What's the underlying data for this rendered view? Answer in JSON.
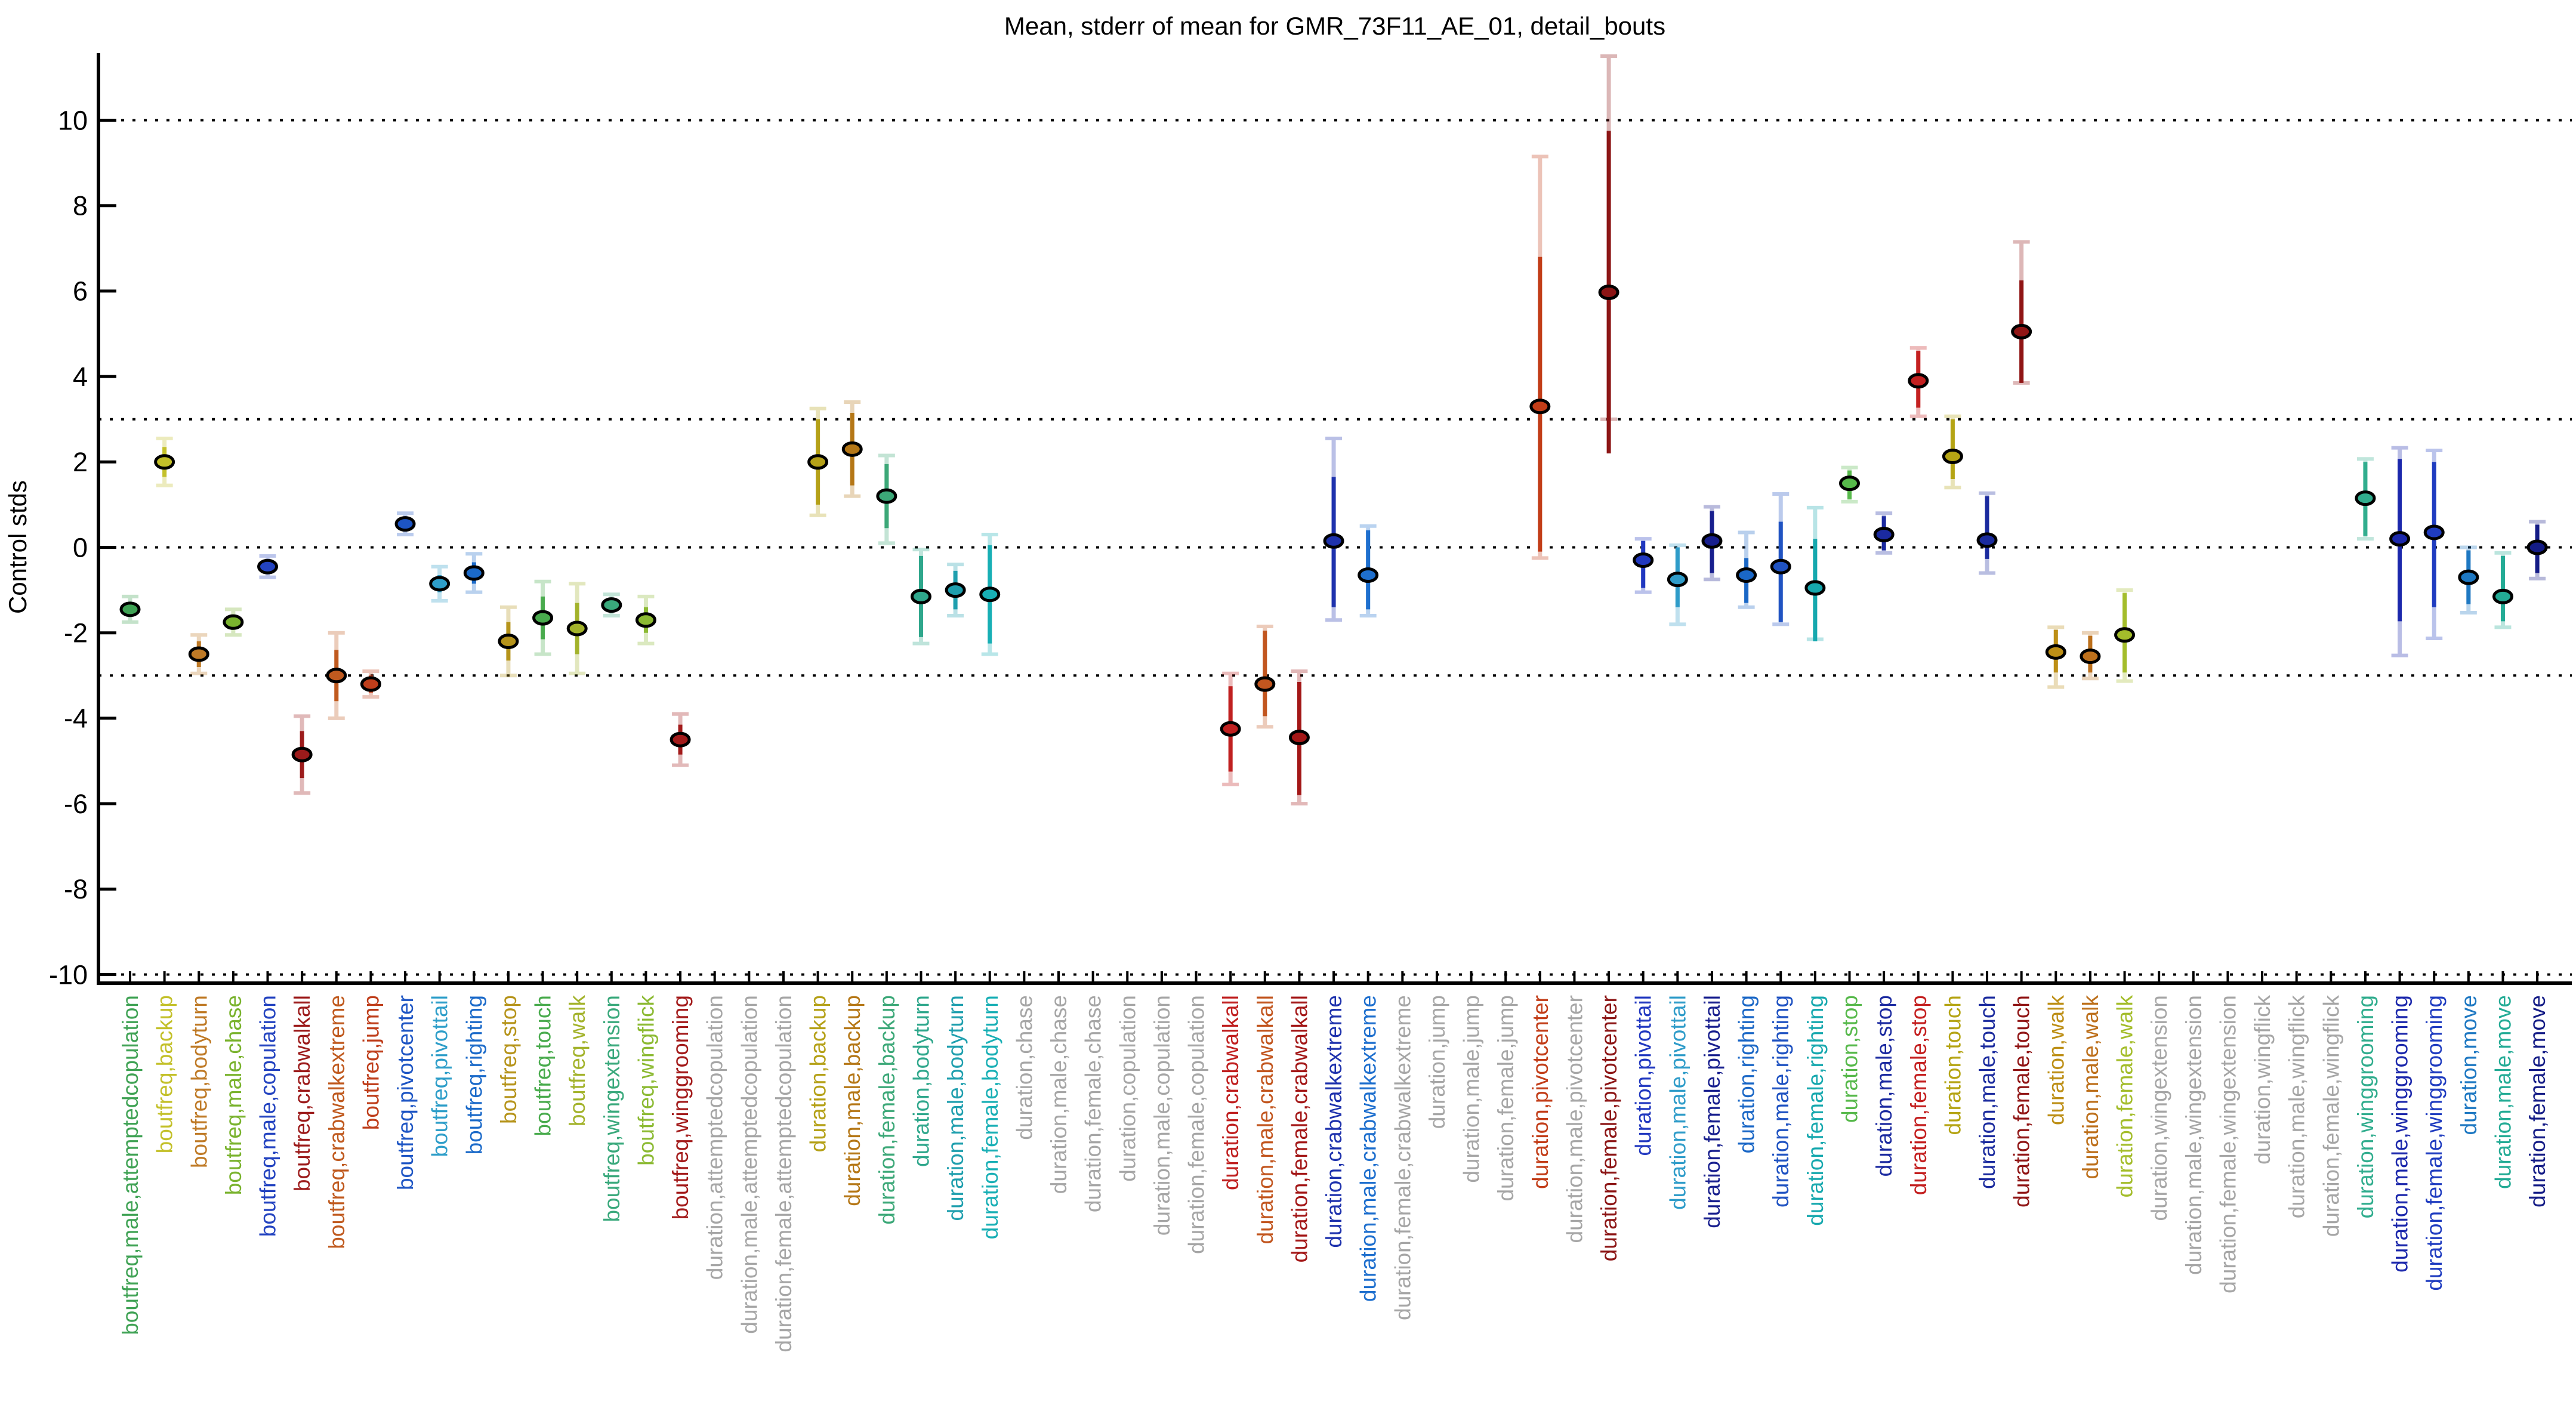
{
  "chart_data": {
    "type": "scatter",
    "title": "Mean, stderr of mean for GMR_73F11_AE_01, detail_bouts",
    "ylabel": "Control stds",
    "ylim": [
      -10.2,
      11.57
    ],
    "yticks": [
      -10,
      -8,
      -6,
      -4,
      -2,
      0,
      2,
      4,
      6,
      8,
      10
    ],
    "gridlines_y": [
      10,
      3,
      0,
      -3,
      -10
    ],
    "grid_on": true,
    "legend": "none",
    "no_data_color": "#a6a6a6",
    "points": [
      {
        "label": "boutfreq,male,attemptedcopulation",
        "color": "#3fa254",
        "mean": -1.45,
        "se": [
          -1.6,
          -1.3
        ],
        "sd": [
          -1.75,
          -1.15
        ]
      },
      {
        "label": "boutfreq,backup",
        "color": "#c3c029",
        "mean": 2.0,
        "se": [
          1.65,
          2.35
        ],
        "sd": [
          1.45,
          2.55
        ]
      },
      {
        "label": "boutfreq,bodyturn",
        "color": "#bf7a26",
        "mean": -2.5,
        "se": [
          -2.8,
          -2.2
        ],
        "sd": [
          -2.95,
          -2.05
        ]
      },
      {
        "label": "boutfreq,male,chase",
        "color": "#7ab32e",
        "mean": -1.75,
        "se": [
          -1.9,
          -1.6
        ],
        "sd": [
          -2.05,
          -1.45
        ]
      },
      {
        "label": "boutfreq,male,copulation",
        "color": "#2343c0",
        "mean": -0.45,
        "se": [
          -0.6,
          -0.3
        ],
        "sd": [
          -0.7,
          -0.2
        ]
      },
      {
        "label": "boutfreq,crabwalkall",
        "color": "#9c1b1b",
        "mean": -4.85,
        "se": [
          -5.4,
          -4.3
        ],
        "sd": [
          -5.75,
          -3.95
        ]
      },
      {
        "label": "boutfreq,crabwalkextreme",
        "color": "#c05a1f",
        "mean": -3.0,
        "se": [
          -3.6,
          -2.4
        ],
        "sd": [
          -4.0,
          -2.0
        ]
      },
      {
        "label": "boutfreq,jump",
        "color": "#bf3e1b",
        "mean": -3.2,
        "se": [
          -3.4,
          -3.0
        ],
        "sd": [
          -3.5,
          -2.9
        ]
      },
      {
        "label": "boutfreq,pivotcenter",
        "color": "#1d55c4",
        "mean": 0.55,
        "se": [
          0.4,
          0.7
        ],
        "sd": [
          0.3,
          0.8
        ]
      },
      {
        "label": "boutfreq,pivottail",
        "color": "#2e9ec9",
        "mean": -0.85,
        "se": [
          -1.05,
          -0.65
        ],
        "sd": [
          -1.25,
          -0.45
        ]
      },
      {
        "label": "boutfreq,righting",
        "color": "#1b6ac9",
        "mean": -0.6,
        "se": [
          -0.85,
          -0.35
        ],
        "sd": [
          -1.05,
          -0.15
        ]
      },
      {
        "label": "boutfreq,stop",
        "color": "#b6941b",
        "mean": -2.2,
        "se": [
          -2.65,
          -1.75
        ],
        "sd": [
          -3.0,
          -1.4
        ]
      },
      {
        "label": "boutfreq,touch",
        "color": "#49ab4d",
        "mean": -1.65,
        "se": [
          -2.15,
          -1.15
        ],
        "sd": [
          -2.5,
          -0.8
        ]
      },
      {
        "label": "boutfreq,walk",
        "color": "#a3b32b",
        "mean": -1.9,
        "se": [
          -2.5,
          -1.3
        ],
        "sd": [
          -2.95,
          -0.85
        ]
      },
      {
        "label": "boutfreq,wingextension",
        "color": "#3aa97c",
        "mean": -1.35,
        "se": [
          -1.5,
          -1.2
        ],
        "sd": [
          -1.6,
          -1.1
        ]
      },
      {
        "label": "boutfreq,wingflick",
        "color": "#8cba33",
        "mean": -1.7,
        "se": [
          -2.0,
          -1.4
        ],
        "sd": [
          -2.25,
          -1.15
        ]
      },
      {
        "label": "boutfreq,winggrooming",
        "color": "#a31b1b",
        "mean": -4.5,
        "se": [
          -4.85,
          -4.15
        ],
        "sd": [
          -5.1,
          -3.9
        ]
      },
      {
        "label": "duration,attemptedcopulation",
        "color": "#a6a6a6",
        "mean": null,
        "se": null,
        "sd": null
      },
      {
        "label": "duration,male,attemptedcopulation",
        "color": "#a6a6a6",
        "mean": null,
        "se": null,
        "sd": null
      },
      {
        "label": "duration,female,attemptedcopulation",
        "color": "#a6a6a6",
        "mean": null,
        "se": null,
        "sd": null
      },
      {
        "label": "duration,backup",
        "color": "#b5a118",
        "mean": 2.0,
        "se": [
          1.0,
          3.0
        ],
        "sd": [
          0.75,
          3.25
        ]
      },
      {
        "label": "duration,male,backup",
        "color": "#b57716",
        "mean": 2.3,
        "se": [
          1.45,
          3.15
        ],
        "sd": [
          1.2,
          3.4
        ]
      },
      {
        "label": "duration,female,backup",
        "color": "#3ca878",
        "mean": 1.2,
        "se": [
          0.45,
          1.95
        ],
        "sd": [
          0.1,
          2.15
        ]
      },
      {
        "label": "duration,bodyturn",
        "color": "#2fa78c",
        "mean": -1.15,
        "se": [
          -2.1,
          -0.2
        ],
        "sd": [
          -2.25,
          -0.05
        ]
      },
      {
        "label": "duration,male,bodyturn",
        "color": "#1f9fae",
        "mean": -1.0,
        "se": [
          -1.45,
          -0.55
        ],
        "sd": [
          -1.6,
          -0.4
        ]
      },
      {
        "label": "duration,female,bodyturn",
        "color": "#18afb5",
        "mean": -1.1,
        "se": [
          -2.25,
          0.05
        ],
        "sd": [
          -2.5,
          0.3
        ]
      },
      {
        "label": "duration,chase",
        "color": "#a6a6a6",
        "mean": null,
        "se": null,
        "sd": null
      },
      {
        "label": "duration,male,chase",
        "color": "#a6a6a6",
        "mean": null,
        "se": null,
        "sd": null
      },
      {
        "label": "duration,female,chase",
        "color": "#a6a6a6",
        "mean": null,
        "se": null,
        "sd": null
      },
      {
        "label": "duration,copulation",
        "color": "#a6a6a6",
        "mean": null,
        "se": null,
        "sd": null
      },
      {
        "label": "duration,male,copulation",
        "color": "#a6a6a6",
        "mean": null,
        "se": null,
        "sd": null
      },
      {
        "label": "duration,female,copulation",
        "color": "#a6a6a6",
        "mean": null,
        "se": null,
        "sd": null
      },
      {
        "label": "duration,crabwalkall",
        "color": "#c02020",
        "mean": -4.25,
        "se": [
          -5.25,
          -3.25
        ],
        "sd": [
          -5.55,
          -2.95
        ]
      },
      {
        "label": "duration,male,crabwalkall",
        "color": "#c2561f",
        "mean": -3.2,
        "se": [
          -3.95,
          -1.95
        ],
        "sd": [
          -4.2,
          -1.85
        ]
      },
      {
        "label": "duration,female,crabwalkall",
        "color": "#a31717",
        "mean": -4.45,
        "se": [
          -5.8,
          -3.15
        ],
        "sd": [
          -6.0,
          -2.9
        ]
      },
      {
        "label": "duration,crabwalkextreme",
        "color": "#1e32ad",
        "mean": 0.15,
        "se": [
          -1.4,
          1.65
        ],
        "sd": [
          -1.7,
          2.55
        ]
      },
      {
        "label": "duration,male,crabwalkextreme",
        "color": "#1e6fce",
        "mean": -0.65,
        "se": [
          -1.45,
          0.4
        ],
        "sd": [
          -1.6,
          0.5
        ]
      },
      {
        "label": "duration,female,crabwalkextreme",
        "color": "#a6a6a6",
        "mean": null,
        "se": null,
        "sd": null
      },
      {
        "label": "duration,jump",
        "color": "#a6a6a6",
        "mean": null,
        "se": null,
        "sd": null
      },
      {
        "label": "duration,male,jump",
        "color": "#a6a6a6",
        "mean": null,
        "se": null,
        "sd": null
      },
      {
        "label": "duration,female,jump",
        "color": "#a6a6a6",
        "mean": null,
        "se": null,
        "sd": null
      },
      {
        "label": "duration,pivotcenter",
        "color": "#c23d18",
        "mean": 3.3,
        "se": [
          -0.1,
          6.8
        ],
        "sd": [
          -0.25,
          9.15
        ]
      },
      {
        "label": "duration,male,pivotcenter",
        "color": "#a6a6a6",
        "mean": null,
        "se": null,
        "sd": null
      },
      {
        "label": "duration,female,pivotcenter",
        "color": "#8c1515",
        "mean": 5.97,
        "se": [
          2.2,
          9.75
        ],
        "sd": [
          3.0,
          11.5
        ]
      },
      {
        "label": "duration,pivottail",
        "color": "#2138c0",
        "mean": -0.3,
        "se": [
          -0.95,
          0.15
        ],
        "sd": [
          -1.05,
          0.2
        ]
      },
      {
        "label": "duration,male,pivottail",
        "color": "#2f9cc9",
        "mean": -0.75,
        "se": [
          -1.4,
          0.0
        ],
        "sd": [
          -1.8,
          0.05
        ]
      },
      {
        "label": "duration,female,pivottail",
        "color": "#181f8e",
        "mean": 0.15,
        "se": [
          -0.6,
          0.85
        ],
        "sd": [
          -0.75,
          0.95
        ]
      },
      {
        "label": "duration,righting",
        "color": "#1a67c6",
        "mean": -0.65,
        "se": [
          -1.3,
          -0.25
        ],
        "sd": [
          -1.4,
          0.35
        ]
      },
      {
        "label": "duration,male,righting",
        "color": "#2053c2",
        "mean": -0.45,
        "se": [
          -1.75,
          0.6
        ],
        "sd": [
          -1.8,
          1.25
        ]
      },
      {
        "label": "duration,female,righting",
        "color": "#16a8ae",
        "mean": -0.95,
        "se": [
          -2.2,
          0.2
        ],
        "sd": [
          -2.15,
          0.93
        ]
      },
      {
        "label": "duration,stop",
        "color": "#57b94b",
        "mean": 1.5,
        "se": [
          1.13,
          1.8
        ],
        "sd": [
          1.07,
          1.87
        ]
      },
      {
        "label": "duration,male,stop",
        "color": "#1b2aa0",
        "mean": 0.3,
        "se": [
          -0.07,
          0.73
        ],
        "sd": [
          -0.13,
          0.8
        ]
      },
      {
        "label": "duration,female,stop",
        "color": "#c42020",
        "mean": 3.9,
        "se": [
          3.27,
          4.6
        ],
        "sd": [
          3.07,
          4.67
        ]
      },
      {
        "label": "duration,touch",
        "color": "#b5a414",
        "mean": 2.13,
        "se": [
          1.6,
          3.0
        ],
        "sd": [
          1.4,
          3.07
        ]
      },
      {
        "label": "duration,male,touch",
        "color": "#1b2b9e",
        "mean": 0.17,
        "se": [
          -0.27,
          1.2
        ],
        "sd": [
          -0.6,
          1.27
        ]
      },
      {
        "label": "duration,female,touch",
        "color": "#901515",
        "mean": 5.05,
        "se": [
          3.85,
          6.25
        ],
        "sd": [
          3.85,
          7.15
        ]
      },
      {
        "label": "duration,walk",
        "color": "#bd8f16",
        "mean": -2.45,
        "se": [
          -2.93,
          -1.93
        ],
        "sd": [
          -3.27,
          -1.87
        ]
      },
      {
        "label": "duration,male,walk",
        "color": "#bd701c",
        "mean": -2.55,
        "se": [
          -2.93,
          -2.07
        ],
        "sd": [
          -3.07,
          -2.0
        ]
      },
      {
        "label": "duration,female,walk",
        "color": "#a4bd2b",
        "mean": -2.05,
        "se": [
          -2.93,
          -1.07
        ],
        "sd": [
          -3.13,
          -1.0
        ]
      },
      {
        "label": "duration,wingextension",
        "color": "#a6a6a6",
        "mean": null,
        "se": null,
        "sd": null
      },
      {
        "label": "duration,male,wingextension",
        "color": "#a6a6a6",
        "mean": null,
        "se": null,
        "sd": null
      },
      {
        "label": "duration,female,wingextension",
        "color": "#a6a6a6",
        "mean": null,
        "se": null,
        "sd": null
      },
      {
        "label": "duration,wingflick",
        "color": "#a6a6a6",
        "mean": null,
        "se": null,
        "sd": null
      },
      {
        "label": "duration,male,wingflick",
        "color": "#a6a6a6",
        "mean": null,
        "se": null,
        "sd": null
      },
      {
        "label": "duration,female,wingflick",
        "color": "#a6a6a6",
        "mean": null,
        "se": null,
        "sd": null
      },
      {
        "label": "duration,winggrooming",
        "color": "#31ad8e",
        "mean": 1.15,
        "se": [
          0.27,
          2.0
        ],
        "sd": [
          0.2,
          2.07
        ]
      },
      {
        "label": "duration,male,winggrooming",
        "color": "#1c28ac",
        "mean": 0.2,
        "se": [
          -1.73,
          2.07
        ],
        "sd": [
          -2.53,
          2.33
        ]
      },
      {
        "label": "duration,female,winggrooming",
        "color": "#1f3cc0",
        "mean": 0.35,
        "se": [
          -1.4,
          2.0
        ],
        "sd": [
          -2.13,
          2.27
        ]
      },
      {
        "label": "duration,move",
        "color": "#1e78c2",
        "mean": -0.7,
        "se": [
          -1.33,
          -0.07
        ],
        "sd": [
          -1.53,
          0.0
        ]
      },
      {
        "label": "duration,male,move",
        "color": "#23ab95",
        "mean": -1.15,
        "se": [
          -1.73,
          -0.2
        ],
        "sd": [
          -1.87,
          -0.13
        ]
      },
      {
        "label": "duration,female,move",
        "color": "#141c86",
        "mean": 0.0,
        "se": [
          -0.6,
          0.53
        ],
        "sd": [
          -0.73,
          0.6
        ]
      }
    ]
  }
}
